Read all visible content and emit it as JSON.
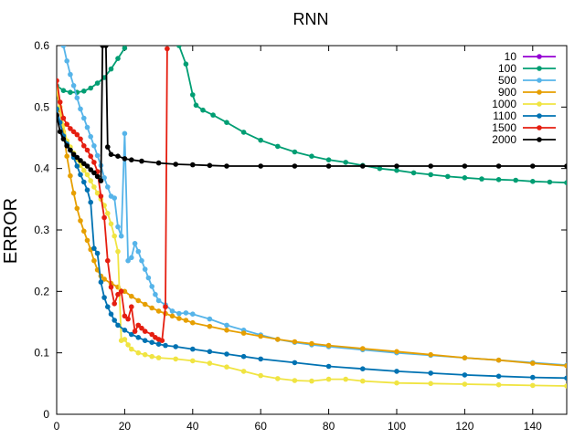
{
  "chart_data": {
    "type": "line",
    "title": "RNN",
    "xlabel": "",
    "ylabel": "ERROR",
    "xlim": [
      0,
      150
    ],
    "ylim": [
      0,
      0.6
    ],
    "xticks": [
      0,
      20,
      40,
      60,
      80,
      100,
      120,
      140
    ],
    "yticks": [
      0,
      0.1,
      0.2,
      0.3,
      0.4,
      0.5,
      0.6
    ],
    "grid": false,
    "legend_position": "top-right",
    "series": [
      {
        "name": "10",
        "color": "#9400d3",
        "points": []
      },
      {
        "name": "100",
        "color": "#009e73",
        "points": [
          [
            0,
            0.535
          ],
          [
            2,
            0.527
          ],
          [
            4,
            0.524
          ],
          [
            6,
            0.524
          ],
          [
            8,
            0.526
          ],
          [
            10,
            0.531
          ],
          [
            12,
            0.539
          ],
          [
            14,
            0.548
          ],
          [
            16,
            0.562
          ],
          [
            18,
            0.579
          ],
          [
            20,
            0.596
          ],
          [
            36,
            0.6
          ],
          [
            38,
            0.57
          ],
          [
            40,
            0.52
          ],
          [
            41,
            0.503
          ],
          [
            43,
            0.495
          ],
          [
            46,
            0.487
          ],
          [
            50,
            0.475
          ],
          [
            55,
            0.459
          ],
          [
            60,
            0.446
          ],
          [
            65,
            0.436
          ],
          [
            70,
            0.427
          ],
          [
            75,
            0.42
          ],
          [
            80,
            0.414
          ],
          [
            85,
            0.41
          ],
          [
            90,
            0.405
          ],
          [
            95,
            0.4
          ],
          [
            100,
            0.397
          ],
          [
            105,
            0.393
          ],
          [
            110,
            0.39
          ],
          [
            115,
            0.387
          ],
          [
            120,
            0.385
          ],
          [
            125,
            0.383
          ],
          [
            130,
            0.382
          ],
          [
            135,
            0.381
          ],
          [
            140,
            0.379
          ],
          [
            145,
            0.378
          ],
          [
            150,
            0.377
          ]
        ]
      },
      {
        "name": "500",
        "color": "#56b4e9",
        "points": [
          [
            2,
            0.6
          ],
          [
            3,
            0.575
          ],
          [
            4,
            0.553
          ],
          [
            5,
            0.535
          ],
          [
            6,
            0.515
          ],
          [
            7,
            0.497
          ],
          [
            8,
            0.482
          ],
          [
            9,
            0.467
          ],
          [
            10,
            0.452
          ],
          [
            11,
            0.437
          ],
          [
            12,
            0.421
          ],
          [
            13,
            0.405
          ],
          [
            14,
            0.385
          ],
          [
            15,
            0.37
          ],
          [
            16,
            0.355
          ],
          [
            17,
            0.352
          ],
          [
            18,
            0.305
          ],
          [
            19,
            0.29
          ],
          [
            20,
            0.457
          ],
          [
            21,
            0.25
          ],
          [
            22,
            0.255
          ],
          [
            23,
            0.278
          ],
          [
            24,
            0.265
          ],
          [
            25,
            0.25
          ],
          [
            26,
            0.236
          ],
          [
            27,
            0.222
          ],
          [
            28,
            0.208
          ],
          [
            29,
            0.195
          ],
          [
            30,
            0.185
          ],
          [
            32,
            0.178
          ],
          [
            34,
            0.168
          ],
          [
            36,
            0.164
          ],
          [
            38,
            0.165
          ],
          [
            40,
            0.163
          ],
          [
            45,
            0.155
          ],
          [
            50,
            0.145
          ],
          [
            55,
            0.137
          ],
          [
            60,
            0.129
          ],
          [
            65,
            0.122
          ],
          [
            70,
            0.117
          ],
          [
            75,
            0.113
          ],
          [
            80,
            0.11
          ],
          [
            90,
            0.105
          ],
          [
            100,
            0.1
          ],
          [
            110,
            0.096
          ],
          [
            120,
            0.092
          ],
          [
            130,
            0.088
          ],
          [
            140,
            0.084
          ],
          [
            150,
            0.08
          ]
        ]
      },
      {
        "name": "900",
        "color": "#e69f00",
        "points": [
          [
            0,
            0.527
          ],
          [
            1,
            0.495
          ],
          [
            2,
            0.46
          ],
          [
            3,
            0.42
          ],
          [
            4,
            0.388
          ],
          [
            5,
            0.36
          ],
          [
            6,
            0.335
          ],
          [
            7,
            0.315
          ],
          [
            8,
            0.298
          ],
          [
            9,
            0.283
          ],
          [
            10,
            0.268
          ],
          [
            11,
            0.25
          ],
          [
            12,
            0.235
          ],
          [
            13,
            0.225
          ],
          [
            14,
            0.22
          ],
          [
            16,
            0.213
          ],
          [
            18,
            0.207
          ],
          [
            20,
            0.2
          ],
          [
            22,
            0.192
          ],
          [
            24,
            0.185
          ],
          [
            26,
            0.179
          ],
          [
            28,
            0.173
          ],
          [
            30,
            0.168
          ],
          [
            32,
            0.164
          ],
          [
            34,
            0.16
          ],
          [
            36,
            0.156
          ],
          [
            38,
            0.153
          ],
          [
            40,
            0.149
          ],
          [
            45,
            0.143
          ],
          [
            50,
            0.137
          ],
          [
            55,
            0.132
          ],
          [
            60,
            0.127
          ],
          [
            65,
            0.122
          ],
          [
            70,
            0.118
          ],
          [
            75,
            0.115
          ],
          [
            80,
            0.112
          ],
          [
            90,
            0.107
          ],
          [
            100,
            0.102
          ],
          [
            110,
            0.097
          ],
          [
            120,
            0.092
          ],
          [
            130,
            0.088
          ],
          [
            140,
            0.083
          ],
          [
            150,
            0.079
          ]
        ]
      },
      {
        "name": "1000",
        "color": "#f0e442",
        "points": [
          [
            0,
            0.53
          ],
          [
            1,
            0.5
          ],
          [
            2,
            0.47
          ],
          [
            3,
            0.445
          ],
          [
            4,
            0.435
          ],
          [
            5,
            0.425
          ],
          [
            6,
            0.415
          ],
          [
            7,
            0.405
          ],
          [
            8,
            0.397
          ],
          [
            9,
            0.39
          ],
          [
            10,
            0.38
          ],
          [
            11,
            0.37
          ],
          [
            12,
            0.36
          ],
          [
            13,
            0.35
          ],
          [
            14,
            0.34
          ],
          [
            15,
            0.327
          ],
          [
            16,
            0.31
          ],
          [
            17,
            0.29
          ],
          [
            18,
            0.265
          ],
          [
            19,
            0.12
          ],
          [
            20,
            0.122
          ],
          [
            21,
            0.113
          ],
          [
            22,
            0.106
          ],
          [
            24,
            0.1
          ],
          [
            26,
            0.097
          ],
          [
            28,
            0.094
          ],
          [
            30,
            0.092
          ],
          [
            35,
            0.09
          ],
          [
            40,
            0.087
          ],
          [
            45,
            0.083
          ],
          [
            50,
            0.077
          ],
          [
            55,
            0.07
          ],
          [
            60,
            0.063
          ],
          [
            65,
            0.058
          ],
          [
            70,
            0.055
          ],
          [
            75,
            0.054
          ],
          [
            80,
            0.057
          ],
          [
            85,
            0.057
          ],
          [
            90,
            0.054
          ],
          [
            100,
            0.051
          ],
          [
            110,
            0.05
          ],
          [
            120,
            0.049
          ],
          [
            130,
            0.048
          ],
          [
            140,
            0.047
          ],
          [
            150,
            0.046
          ]
        ]
      },
      {
        "name": "1100",
        "color": "#0072b2",
        "points": [
          [
            0,
            0.497
          ],
          [
            1,
            0.475
          ],
          [
            2,
            0.453
          ],
          [
            3,
            0.44
          ],
          [
            4,
            0.43
          ],
          [
            5,
            0.418
          ],
          [
            6,
            0.404
          ],
          [
            7,
            0.39
          ],
          [
            8,
            0.378
          ],
          [
            9,
            0.365
          ],
          [
            10,
            0.345
          ],
          [
            11,
            0.27
          ],
          [
            12,
            0.262
          ],
          [
            13,
            0.215
          ],
          [
            14,
            0.19
          ],
          [
            15,
            0.175
          ],
          [
            16,
            0.163
          ],
          [
            17,
            0.153
          ],
          [
            18,
            0.145
          ],
          [
            20,
            0.137
          ],
          [
            22,
            0.13
          ],
          [
            24,
            0.125
          ],
          [
            26,
            0.12
          ],
          [
            28,
            0.117
          ],
          [
            30,
            0.114
          ],
          [
            32,
            0.112
          ],
          [
            35,
            0.11
          ],
          [
            40,
            0.106
          ],
          [
            45,
            0.102
          ],
          [
            50,
            0.098
          ],
          [
            55,
            0.094
          ],
          [
            60,
            0.09
          ],
          [
            70,
            0.084
          ],
          [
            80,
            0.078
          ],
          [
            90,
            0.074
          ],
          [
            100,
            0.07
          ],
          [
            110,
            0.067
          ],
          [
            120,
            0.064
          ],
          [
            130,
            0.062
          ],
          [
            140,
            0.06
          ],
          [
            150,
            0.059
          ]
        ]
      },
      {
        "name": "1500",
        "color": "#e51e10",
        "points": [
          [
            0,
            0.543
          ],
          [
            1,
            0.508
          ],
          [
            2,
            0.482
          ],
          [
            3,
            0.472
          ],
          [
            4,
            0.465
          ],
          [
            5,
            0.46
          ],
          [
            6,
            0.455
          ],
          [
            7,
            0.448
          ],
          [
            8,
            0.437
          ],
          [
            9,
            0.43
          ],
          [
            10,
            0.42
          ],
          [
            11,
            0.41
          ],
          [
            12,
            0.395
          ],
          [
            13,
            0.355
          ],
          [
            14,
            0.32
          ],
          [
            15,
            0.25
          ],
          [
            16,
            0.207
          ],
          [
            17,
            0.18
          ],
          [
            18,
            0.195
          ],
          [
            19,
            0.2
          ],
          [
            20,
            0.16
          ],
          [
            21,
            0.155
          ],
          [
            22,
            0.175
          ],
          [
            23,
            0.135
          ],
          [
            24,
            0.145
          ],
          [
            25,
            0.14
          ],
          [
            26,
            0.135
          ],
          [
            28,
            0.13
          ],
          [
            29,
            0.125
          ],
          [
            30,
            0.122
          ],
          [
            31,
            0.12
          ],
          [
            32,
            0.175
          ],
          [
            32.5,
            0.595
          ]
        ]
      },
      {
        "name": "2000",
        "color": "#000000",
        "points": [
          [
            0,
            0.487
          ],
          [
            1,
            0.46
          ],
          [
            2,
            0.448
          ],
          [
            3,
            0.437
          ],
          [
            4,
            0.43
          ],
          [
            5,
            0.423
          ],
          [
            6,
            0.418
          ],
          [
            7,
            0.413
          ],
          [
            8,
            0.408
          ],
          [
            9,
            0.404
          ],
          [
            10,
            0.398
          ],
          [
            11,
            0.393
          ],
          [
            12,
            0.387
          ],
          [
            13,
            0.38
          ],
          [
            13.5,
            0.6
          ],
          [
            14.5,
            0.6
          ],
          [
            15,
            0.435
          ],
          [
            16,
            0.423
          ],
          [
            18,
            0.42
          ],
          [
            20,
            0.416
          ],
          [
            22,
            0.414
          ],
          [
            25,
            0.412
          ],
          [
            30,
            0.409
          ],
          [
            35,
            0.407
          ],
          [
            40,
            0.406
          ],
          [
            45,
            0.405
          ],
          [
            50,
            0.404
          ],
          [
            60,
            0.404
          ],
          [
            70,
            0.404
          ],
          [
            80,
            0.404
          ],
          [
            90,
            0.404
          ],
          [
            100,
            0.404
          ],
          [
            110,
            0.404
          ],
          [
            120,
            0.404
          ],
          [
            130,
            0.404
          ],
          [
            140,
            0.404
          ],
          [
            150,
            0.404
          ]
        ]
      }
    ]
  }
}
